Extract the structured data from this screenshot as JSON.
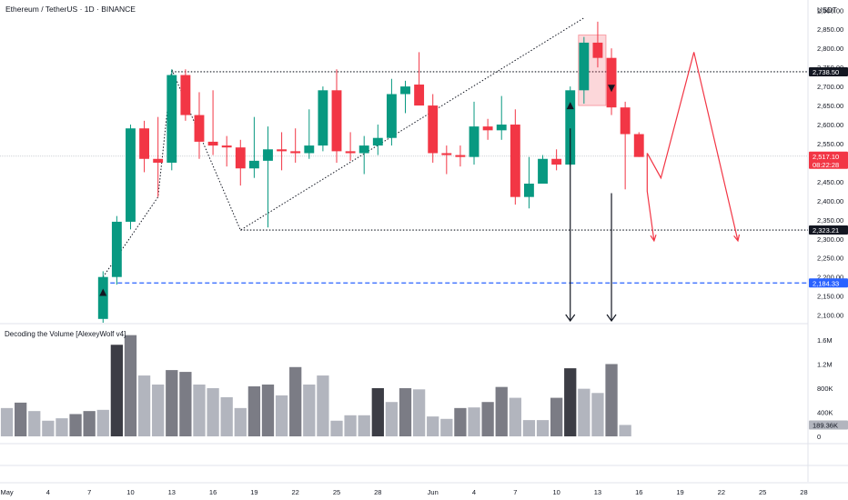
{
  "header": {
    "title": "Ethereum / TetherUS · 1D · BINANCE",
    "currency": "USDT"
  },
  "volume_panel": {
    "title": "Decoding the Volume [AlexeyWolf v4]",
    "current_badge": "189.36K"
  },
  "price_badges": {
    "resistance": "2,738.50",
    "last_price": "2,517.10",
    "countdown": "08:22:28",
    "support": "2,323.21",
    "blue_level": "2,184.33"
  },
  "colors": {
    "up": "#089981",
    "down": "#f23645",
    "blue_level": "#2962ff",
    "volume_dark": "#3c3d45",
    "volume_mid": "#7b7c85",
    "volume_light": "#b2b5be"
  },
  "chart_data": {
    "type": "candlestick",
    "title": "Ethereum / TetherUS · 1D · BINANCE",
    "price_axis": {
      "ticks": [
        "2,900.00",
        "2,850.00",
        "2,800.00",
        "2,750.00",
        "2,700.00",
        "2,650.00",
        "2,600.00",
        "2,550.00",
        "2,500.00",
        "2,450.00",
        "2,400.00",
        "2,350.00",
        "2,300.00",
        "2,250.00",
        "2,200.00",
        "2,150.00",
        "2,100.00"
      ],
      "min": 2080,
      "max": 2915
    },
    "volume_axis": {
      "ticks": [
        "1.6M",
        "1.2M",
        "800K",
        "400K",
        "0"
      ],
      "max": 1720000
    },
    "x_axis": {
      "start_date": "2024-05-01",
      "range_days": [
        -0.5,
        58.3
      ],
      "ticks": [
        {
          "day": 0,
          "label": "May"
        },
        {
          "day": 3,
          "label": "4"
        },
        {
          "day": 6,
          "label": "7"
        },
        {
          "day": 9,
          "label": "10"
        },
        {
          "day": 12,
          "label": "13"
        },
        {
          "day": 15,
          "label": "16"
        },
        {
          "day": 18,
          "label": "19"
        },
        {
          "day": 21,
          "label": "22"
        },
        {
          "day": 24,
          "label": "25"
        },
        {
          "day": 27,
          "label": "28"
        },
        {
          "day": 31,
          "label": "Jun"
        },
        {
          "day": 34,
          "label": "4"
        },
        {
          "day": 37,
          "label": "7"
        },
        {
          "day": 40,
          "label": "10"
        },
        {
          "day": 43,
          "label": "13"
        },
        {
          "day": 46,
          "label": "16"
        },
        {
          "day": 49,
          "label": "19"
        },
        {
          "day": 52,
          "label": "22"
        },
        {
          "day": 55,
          "label": "25"
        },
        {
          "day": 58,
          "label": "28"
        }
      ]
    },
    "candles": [
      {
        "day": 7,
        "o": 2090,
        "h": 2215,
        "l": 2080,
        "c": 2200
      },
      {
        "day": 8,
        "o": 2200,
        "h": 2360,
        "l": 2180,
        "c": 2345
      },
      {
        "day": 9,
        "o": 2345,
        "h": 2600,
        "l": 2325,
        "c": 2590
      },
      {
        "day": 10,
        "o": 2590,
        "h": 2610,
        "l": 2475,
        "c": 2510
      },
      {
        "day": 11,
        "o": 2510,
        "h": 2620,
        "l": 2410,
        "c": 2500
      },
      {
        "day": 12,
        "o": 2500,
        "h": 2745,
        "l": 2480,
        "c": 2730
      },
      {
        "day": 13,
        "o": 2730,
        "h": 2745,
        "l": 2610,
        "c": 2625
      },
      {
        "day": 14,
        "o": 2625,
        "h": 2685,
        "l": 2510,
        "c": 2555
      },
      {
        "day": 15,
        "o": 2555,
        "h": 2690,
        "l": 2520,
        "c": 2545
      },
      {
        "day": 16,
        "o": 2545,
        "h": 2570,
        "l": 2490,
        "c": 2540
      },
      {
        "day": 17,
        "o": 2540,
        "h": 2560,
        "l": 2440,
        "c": 2485
      },
      {
        "day": 18,
        "o": 2485,
        "h": 2620,
        "l": 2460,
        "c": 2505
      },
      {
        "day": 19,
        "o": 2505,
        "h": 2595,
        "l": 2330,
        "c": 2535
      },
      {
        "day": 20,
        "o": 2535,
        "h": 2580,
        "l": 2480,
        "c": 2530
      },
      {
        "day": 21,
        "o": 2530,
        "h": 2590,
        "l": 2500,
        "c": 2525
      },
      {
        "day": 22,
        "o": 2525,
        "h": 2640,
        "l": 2510,
        "c": 2545
      },
      {
        "day": 23,
        "o": 2545,
        "h": 2700,
        "l": 2530,
        "c": 2690
      },
      {
        "day": 24,
        "o": 2690,
        "h": 2745,
        "l": 2500,
        "c": 2530
      },
      {
        "day": 25,
        "o": 2530,
        "h": 2580,
        "l": 2505,
        "c": 2525
      },
      {
        "day": 26,
        "o": 2525,
        "h": 2570,
        "l": 2470,
        "c": 2545
      },
      {
        "day": 27,
        "o": 2545,
        "h": 2600,
        "l": 2520,
        "c": 2565
      },
      {
        "day": 28,
        "o": 2565,
        "h": 2720,
        "l": 2545,
        "c": 2680
      },
      {
        "day": 29,
        "o": 2680,
        "h": 2715,
        "l": 2630,
        "c": 2700
      },
      {
        "day": 30,
        "o": 2705,
        "h": 2790,
        "l": 2655,
        "c": 2650
      },
      {
        "day": 31,
        "o": 2650,
        "h": 2680,
        "l": 2500,
        "c": 2525
      },
      {
        "day": 32,
        "o": 2525,
        "h": 2545,
        "l": 2470,
        "c": 2520
      },
      {
        "day": 33,
        "o": 2520,
        "h": 2545,
        "l": 2490,
        "c": 2515
      },
      {
        "day": 34,
        "o": 2515,
        "h": 2660,
        "l": 2495,
        "c": 2595
      },
      {
        "day": 35,
        "o": 2595,
        "h": 2615,
        "l": 2560,
        "c": 2585
      },
      {
        "day": 36,
        "o": 2585,
        "h": 2675,
        "l": 2560,
        "c": 2600
      },
      {
        "day": 37,
        "o": 2600,
        "h": 2640,
        "l": 2390,
        "c": 2410
      },
      {
        "day": 38,
        "o": 2410,
        "h": 2515,
        "l": 2380,
        "c": 2445
      },
      {
        "day": 39,
        "o": 2445,
        "h": 2520,
        "l": 2445,
        "c": 2510
      },
      {
        "day": 40,
        "o": 2510,
        "h": 2535,
        "l": 2480,
        "c": 2495
      },
      {
        "day": 41,
        "o": 2495,
        "h": 2700,
        "l": 2490,
        "c": 2690
      },
      {
        "day": 42,
        "o": 2690,
        "h": 2830,
        "l": 2655,
        "c": 2815
      },
      {
        "day": 43,
        "o": 2815,
        "h": 2870,
        "l": 2750,
        "c": 2775
      },
      {
        "day": 44,
        "o": 2775,
        "h": 2800,
        "l": 2625,
        "c": 2645
      },
      {
        "day": 45,
        "o": 2645,
        "h": 2660,
        "l": 2430,
        "c": 2575
      },
      {
        "day": 46,
        "o": 2575,
        "h": 2580,
        "l": 2515,
        "c": 2515
      }
    ],
    "volumes": [
      {
        "day": 0,
        "v": 470000,
        "tone": "light"
      },
      {
        "day": 1,
        "v": 560000,
        "tone": "mid"
      },
      {
        "day": 2,
        "v": 420000,
        "tone": "light"
      },
      {
        "day": 3,
        "v": 260000,
        "tone": "light"
      },
      {
        "day": 4,
        "v": 300000,
        "tone": "light"
      },
      {
        "day": 5,
        "v": 370000,
        "tone": "mid"
      },
      {
        "day": 6,
        "v": 420000,
        "tone": "mid"
      },
      {
        "day": 7,
        "v": 440000,
        "tone": "light"
      },
      {
        "day": 8,
        "v": 1520000,
        "tone": "dark"
      },
      {
        "day": 9,
        "v": 1680000,
        "tone": "mid"
      },
      {
        "day": 10,
        "v": 1010000,
        "tone": "light"
      },
      {
        "day": 11,
        "v": 860000,
        "tone": "light"
      },
      {
        "day": 12,
        "v": 1100000,
        "tone": "mid"
      },
      {
        "day": 13,
        "v": 1070000,
        "tone": "mid"
      },
      {
        "day": 14,
        "v": 860000,
        "tone": "light"
      },
      {
        "day": 15,
        "v": 800000,
        "tone": "light"
      },
      {
        "day": 16,
        "v": 650000,
        "tone": "light"
      },
      {
        "day": 17,
        "v": 470000,
        "tone": "light"
      },
      {
        "day": 18,
        "v": 830000,
        "tone": "mid"
      },
      {
        "day": 19,
        "v": 860000,
        "tone": "mid"
      },
      {
        "day": 20,
        "v": 680000,
        "tone": "light"
      },
      {
        "day": 21,
        "v": 1150000,
        "tone": "mid"
      },
      {
        "day": 22,
        "v": 860000,
        "tone": "light"
      },
      {
        "day": 23,
        "v": 1010000,
        "tone": "light"
      },
      {
        "day": 24,
        "v": 260000,
        "tone": "light"
      },
      {
        "day": 25,
        "v": 350000,
        "tone": "light"
      },
      {
        "day": 26,
        "v": 350000,
        "tone": "light"
      },
      {
        "day": 27,
        "v": 800000,
        "tone": "dark"
      },
      {
        "day": 28,
        "v": 570000,
        "tone": "light"
      },
      {
        "day": 29,
        "v": 800000,
        "tone": "mid"
      },
      {
        "day": 30,
        "v": 780000,
        "tone": "light"
      },
      {
        "day": 31,
        "v": 330000,
        "tone": "light"
      },
      {
        "day": 32,
        "v": 290000,
        "tone": "light"
      },
      {
        "day": 33,
        "v": 470000,
        "tone": "mid"
      },
      {
        "day": 34,
        "v": 480000,
        "tone": "light"
      },
      {
        "day": 35,
        "v": 570000,
        "tone": "mid"
      },
      {
        "day": 36,
        "v": 820000,
        "tone": "mid"
      },
      {
        "day": 37,
        "v": 640000,
        "tone": "light"
      },
      {
        "day": 38,
        "v": 270000,
        "tone": "light"
      },
      {
        "day": 39,
        "v": 270000,
        "tone": "light"
      },
      {
        "day": 40,
        "v": 640000,
        "tone": "mid"
      },
      {
        "day": 41,
        "v": 1130000,
        "tone": "dark"
      },
      {
        "day": 42,
        "v": 790000,
        "tone": "light"
      },
      {
        "day": 43,
        "v": 720000,
        "tone": "light"
      },
      {
        "day": 44,
        "v": 1200000,
        "tone": "mid"
      },
      {
        "day": 45,
        "v": 189360,
        "tone": "light"
      }
    ],
    "levels": [
      {
        "name": "resistance",
        "price": 2738.5,
        "style": "dotted",
        "from_day": 12
      },
      {
        "name": "support",
        "price": 2323.21,
        "style": "dotted",
        "from_day": 17
      },
      {
        "name": "blue_level",
        "price": 2184.33,
        "style": "dashed",
        "from_day": 7
      }
    ],
    "annotations": {
      "trend_lines": [
        [
          {
            "day": 7,
            "p": 2200
          },
          {
            "day": 11,
            "p": 2410
          },
          {
            "day": 12,
            "p": 2745
          },
          {
            "day": 17,
            "p": 2323
          },
          {
            "day": 42,
            "p": 2880
          }
        ]
      ],
      "highlight_box": {
        "day_from": 41.6,
        "day_to": 43.6,
        "p_from": 2835,
        "p_to": 2650
      },
      "arrows_down": [
        {
          "day": 41,
          "from": 2590,
          "to": 2080
        },
        {
          "day": 44,
          "from": 2420,
          "to": 2080
        }
      ],
      "markers_up": [
        {
          "day": 7,
          "p": 2160
        },
        {
          "day": 41,
          "p": 2650
        }
      ],
      "markers_down": [
        {
          "day": 44,
          "p": 2695
        }
      ],
      "projection": [
        {
          "day": 46.6,
          "p": 2525
        },
        {
          "day": 47.6,
          "p": 2460
        },
        {
          "day": 50,
          "p": 2790
        },
        {
          "day": 53.2,
          "p": 2295
        }
      ],
      "projection_branch": [
        {
          "day": 46.6,
          "p": 2525
        },
        {
          "day": 46.6,
          "p": 2425
        },
        {
          "day": 47.1,
          "p": 2295
        }
      ]
    }
  }
}
